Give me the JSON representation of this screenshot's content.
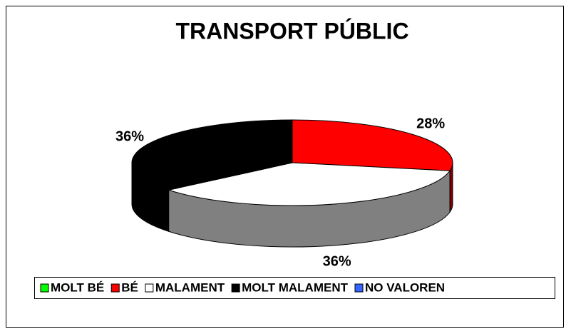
{
  "chart_data": {
    "type": "pie3d",
    "title": "TRANSPORT PÚBLIC",
    "categories": [
      "MOLT BÉ",
      "BÉ",
      "MALAMENT",
      "MOLT MALAMENT",
      "NO VALOREN"
    ],
    "values": [
      0,
      28,
      36,
      36,
      0
    ],
    "value_labels": [
      null,
      "28%",
      "36%",
      "36%",
      null
    ],
    "colors": [
      "#00ff00",
      "#ff0000",
      "#ffffff",
      "#000000",
      "#3366ff"
    ],
    "legend": "bottom"
  }
}
